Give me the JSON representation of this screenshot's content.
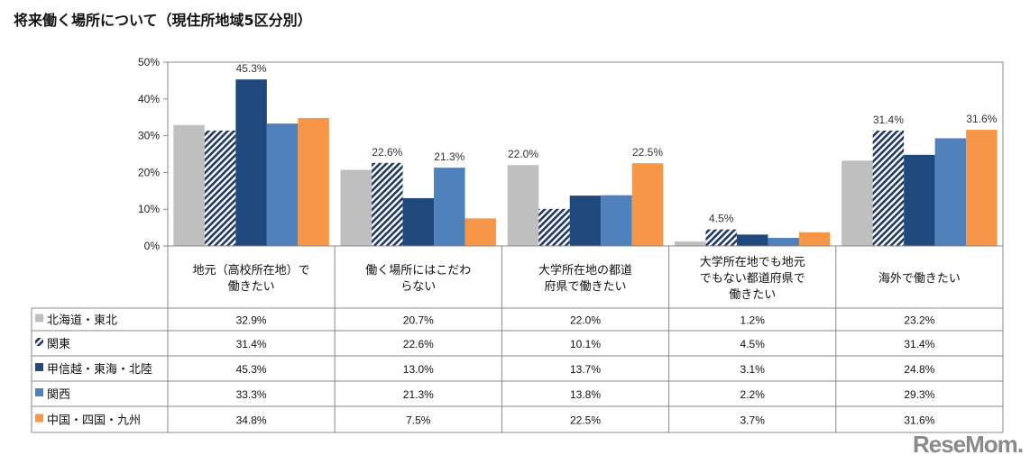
{
  "title": "将来働く場所について（現住所地域5区分別）",
  "logo": "ReseMom",
  "chart_data": {
    "type": "bar",
    "title": "将来働く場所について（現住所地域5区分別）",
    "categories": [
      "地元（高校所在地）で\n働きたい",
      "働く場所にはこだわ\nらない",
      "大学所在地の都道\n府県で働きたい",
      "大学所在地でも地元\nでもない都道府県で\n働きたい",
      "海外で働きたい"
    ],
    "series": [
      {
        "name": "北海道・東北",
        "color": "#bfbfbf",
        "values": [
          32.9,
          20.7,
          22.0,
          1.2,
          23.2
        ],
        "labels_shown": [
          false,
          false,
          true,
          false,
          false
        ]
      },
      {
        "name": "関東",
        "color": "#1f3864",
        "pattern": "hatch",
        "values": [
          31.4,
          22.6,
          10.1,
          4.5,
          31.4
        ],
        "labels_shown": [
          false,
          true,
          false,
          true,
          true
        ]
      },
      {
        "name": "甲信越・東海・北陸",
        "color": "#1f497d",
        "values": [
          45.3,
          13.0,
          13.7,
          3.1,
          24.8
        ],
        "labels_shown": [
          true,
          false,
          false,
          false,
          false
        ]
      },
      {
        "name": "関西",
        "color": "#4f81bd",
        "values": [
          33.3,
          21.3,
          13.8,
          2.2,
          29.3
        ],
        "labels_shown": [
          false,
          true,
          false,
          false,
          false
        ]
      },
      {
        "name": "中国・四国・九州",
        "color": "#f79646",
        "values": [
          34.8,
          7.5,
          22.5,
          3.7,
          31.6
        ],
        "labels_shown": [
          false,
          false,
          true,
          false,
          true
        ]
      }
    ],
    "ylim": [
      0,
      50
    ],
    "yticks": [
      "0%",
      "10%",
      "20%",
      "30%",
      "40%",
      "50%"
    ],
    "grid": false,
    "legend": "data-table"
  }
}
